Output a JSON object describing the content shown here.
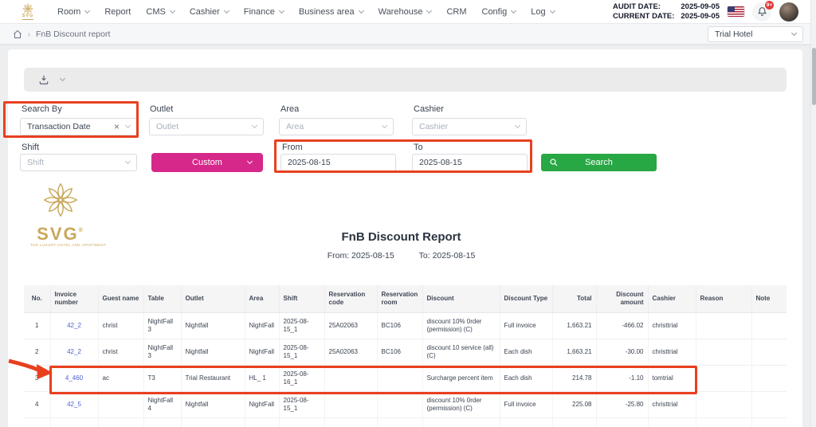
{
  "topnav": {
    "brand": "SVG",
    "items": [
      {
        "label": "Room",
        "chevron": true
      },
      {
        "label": "Report",
        "chevron": false
      },
      {
        "label": "CMS",
        "chevron": true
      },
      {
        "label": "Cashier",
        "chevron": true
      },
      {
        "label": "Finance",
        "chevron": true
      },
      {
        "label": "Business area",
        "chevron": true
      },
      {
        "label": "Warehouse",
        "chevron": true
      },
      {
        "label": "CRM",
        "chevron": false
      },
      {
        "label": "Config",
        "chevron": true
      },
      {
        "label": "Log",
        "chevron": true
      }
    ],
    "audit_date_label": "AUDIT DATE:",
    "audit_date": "2025-09-05",
    "current_date_label": "CURRENT DATE:",
    "current_date": "2025-09-05",
    "notification_badge": "9+"
  },
  "breadcrumb": {
    "page": "FnB Discount report"
  },
  "hotel_selector": {
    "value": "Trial Hotel"
  },
  "filters": {
    "search_by": {
      "label": "Search By",
      "value": "Transaction Date"
    },
    "outlet": {
      "label": "Outlet",
      "placeholder": "Outlet"
    },
    "area": {
      "label": "Area",
      "placeholder": "Area"
    },
    "cashier": {
      "label": "Cashier",
      "placeholder": "Cashier"
    },
    "shift": {
      "label": "Shift",
      "placeholder": "Shift"
    },
    "custom_button": "Custom",
    "from": {
      "label": "From",
      "value": "2025-08-15"
    },
    "to": {
      "label": "To",
      "value": "2025-08-15"
    },
    "search_button": "Search"
  },
  "report": {
    "logo_brand": "SVG",
    "logo_reg": "®",
    "logo_tagline": "THE LUXURY HOTEL AND APARTMENT",
    "title": "FnB Discount Report",
    "from": "From: 2025-08-15",
    "to": "To: 2025-08-15"
  },
  "table": {
    "columns": [
      "No.",
      "Invoice number",
      "Guest name",
      "Table",
      "Outlet",
      "Area",
      "Shift",
      "Reservation code",
      "Reservation room",
      "Discount",
      "Discount Type",
      "Total",
      "Discount amount",
      "Cashier",
      "Reason",
      "Note"
    ],
    "rows": [
      [
        "1",
        "42_2",
        "christ",
        "NightFall 3",
        "Nightfall",
        "NightFall",
        "2025-08-15_1",
        "25A02063",
        "BC106",
        "discount 10% 0rder (permission) (C)",
        "Full invoice",
        "1,663.21",
        "-466.02",
        "christtrial",
        "",
        ""
      ],
      [
        "2",
        "42_2",
        "christ",
        "NightFall 3",
        "Nightfall",
        "NightFall",
        "2025-08-15_1",
        "25A02063",
        "BC106",
        "discount 10 service (all) (C)",
        "Each dish",
        "1,663.21",
        "-30.00",
        "christtrial",
        "",
        ""
      ],
      [
        "3",
        "4_460",
        "ac",
        "T3",
        "Trial Restaurant",
        "HL_ 1",
        "2025-08-16_1",
        "",
        "",
        "Surcharge percent item",
        "Each dish",
        "214.78",
        "-1.10",
        "tomtrial",
        "",
        ""
      ],
      [
        "4",
        "42_5",
        "",
        "NightFall 4",
        "Nightfall",
        "NightFall",
        "2025-08-15_1",
        "",
        "",
        "discount 10% 0rder (permission) (C)",
        "Full invoice",
        "225.08",
        "-25.80",
        "christtrial",
        "",
        ""
      ],
      [
        "",
        "",
        "",
        "",
        "",
        "",
        "",
        "",
        "",
        "",
        "",
        "",
        "",
        "",
        "",
        ""
      ]
    ]
  },
  "colors": {
    "accent_pink": "#d6288a",
    "accent_green": "#28a745",
    "annotation_red": "#e8401f",
    "link_blue": "#4c5fd8",
    "brand_gold": "#c9a85c"
  }
}
